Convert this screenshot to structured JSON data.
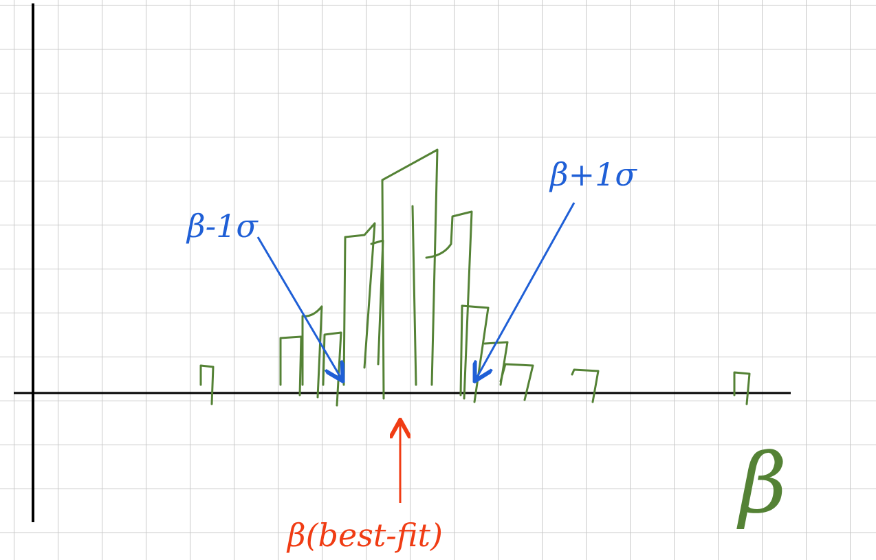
{
  "labels": {
    "minus_sigma": "β-1σ",
    "plus_sigma": "β+1σ",
    "best_fit": "β(best-fit)",
    "axis": "β"
  }
}
